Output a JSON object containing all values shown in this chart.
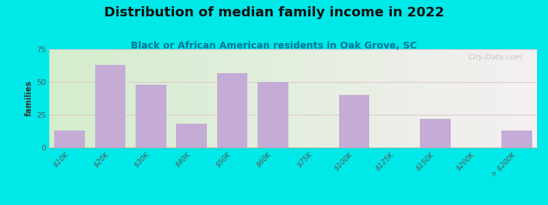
{
  "title": "Distribution of median family income in 2022",
  "subtitle": "Black or African American residents in Oak Grove, SC",
  "categories": [
    "$10K",
    "$20K",
    "$30K",
    "$40K",
    "$50K",
    "$60K",
    "$75K",
    "$100K",
    "$125K",
    "$150K",
    "$200K",
    "> $200K"
  ],
  "values": [
    13,
    63,
    48,
    18,
    57,
    50,
    0,
    40,
    0,
    22,
    0,
    13
  ],
  "bar_color": "#c4acd6",
  "background_outer": "#00e8e8",
  "background_inner_left": "#d4eccc",
  "background_inner_right": "#f2eeee",
  "ylabel": "families",
  "ylim": [
    0,
    75
  ],
  "yticks": [
    0,
    25,
    50,
    75
  ],
  "title_fontsize": 14,
  "subtitle_fontsize": 10,
  "watermark": "City-Data.com"
}
